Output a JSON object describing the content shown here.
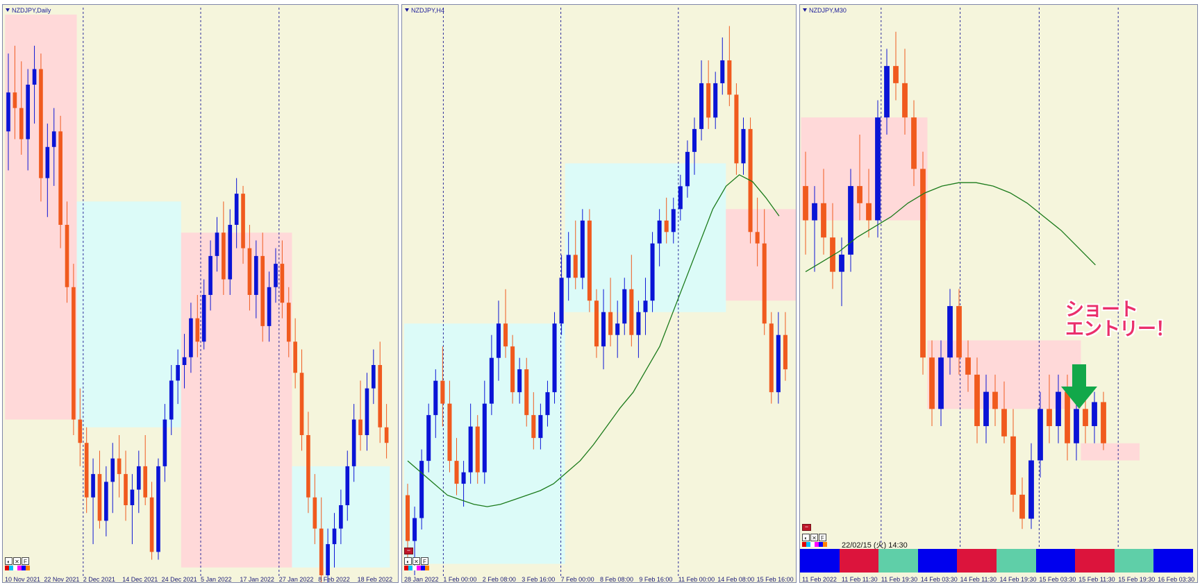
{
  "colors": {
    "background": "#f5f5dc",
    "bull_candle": "#0a14d6",
    "bear_candle": "#f05a1e",
    "moving_average": "#1a7a1a",
    "zone_pink": "#ffd9d9",
    "zone_cyan": "#dcfbf8",
    "annotation": "#ea2f6b",
    "arrow": "#12a84a"
  },
  "toolbar": {
    "minus_label": "−",
    "tool_labels": [
      "◐",
      "✕",
      "F"
    ]
  },
  "chart_data": [
    {
      "type": "candlestick",
      "symbol": "NZDJPY,Daily",
      "x_ticks": [
        "10 Nov 2021",
        "22 Nov 2021",
        "2 Dec 2021",
        "14 Dec 2021",
        "24 Dec 2021",
        "5 Jan 2022",
        "17 Jan 2022",
        "27 Jan 2022",
        "8 Feb 2022",
        "18 Feb 2022"
      ],
      "price_range": [
        76.2,
        79.8
      ],
      "candles": [
        [
          79.05,
          79.55,
          78.8,
          79.3
        ],
        [
          79.3,
          79.6,
          79.0,
          79.2
        ],
        [
          79.2,
          79.5,
          78.9,
          79.0
        ],
        [
          79.0,
          79.45,
          78.8,
          79.35
        ],
        [
          79.35,
          79.6,
          79.1,
          79.45
        ],
        [
          79.45,
          79.55,
          78.6,
          78.75
        ],
        [
          78.75,
          79.1,
          78.5,
          78.95
        ],
        [
          78.95,
          79.2,
          78.7,
          79.05
        ],
        [
          79.05,
          79.15,
          78.3,
          78.45
        ],
        [
          78.45,
          78.6,
          77.95,
          78.05
        ],
        [
          78.05,
          78.2,
          77.1,
          77.2
        ],
        [
          77.2,
          77.4,
          76.9,
          77.05
        ],
        [
          77.05,
          77.15,
          76.6,
          76.7
        ],
        [
          76.7,
          76.95,
          76.4,
          76.85
        ],
        [
          76.85,
          77.0,
          76.5,
          76.55
        ],
        [
          76.55,
          76.9,
          76.45,
          76.8
        ],
        [
          76.8,
          77.05,
          76.6,
          76.95
        ],
        [
          76.95,
          77.1,
          76.7,
          76.85
        ],
        [
          76.85,
          77.0,
          76.55,
          76.65
        ],
        [
          76.65,
          76.85,
          76.4,
          76.75
        ],
        [
          76.75,
          77.0,
          76.6,
          76.9
        ],
        [
          76.9,
          77.1,
          76.65,
          76.7
        ],
        [
          76.7,
          76.8,
          76.3,
          76.35
        ],
        [
          76.35,
          76.95,
          76.3,
          76.9
        ],
        [
          76.9,
          77.3,
          76.8,
          77.2
        ],
        [
          77.2,
          77.55,
          77.1,
          77.45
        ],
        [
          77.45,
          77.65,
          77.3,
          77.55
        ],
        [
          77.55,
          77.75,
          77.4,
          77.6
        ],
        [
          77.6,
          77.95,
          77.5,
          77.85
        ],
        [
          77.85,
          78.0,
          77.6,
          77.7
        ],
        [
          77.7,
          78.1,
          77.65,
          78.0
        ],
        [
          78.0,
          78.35,
          77.9,
          78.25
        ],
        [
          78.25,
          78.5,
          78.15,
          78.4
        ],
        [
          78.4,
          78.6,
          78.0,
          78.1
        ],
        [
          78.1,
          78.55,
          78.0,
          78.45
        ],
        [
          78.45,
          78.75,
          78.3,
          78.65
        ],
        [
          78.65,
          78.7,
          78.2,
          78.3
        ],
        [
          78.3,
          78.45,
          77.9,
          78.0
        ],
        [
          78.0,
          78.35,
          77.85,
          78.25
        ],
        [
          78.25,
          78.4,
          77.7,
          77.8
        ],
        [
          77.8,
          78.15,
          77.7,
          78.05
        ],
        [
          78.05,
          78.3,
          77.95,
          78.2
        ],
        [
          78.2,
          78.35,
          77.85,
          77.95
        ],
        [
          77.95,
          78.05,
          77.6,
          77.7
        ],
        [
          77.7,
          77.85,
          77.4,
          77.5
        ],
        [
          77.5,
          77.65,
          77.0,
          77.1
        ],
        [
          77.1,
          77.25,
          76.6,
          76.7
        ],
        [
          76.7,
          76.85,
          76.4,
          76.5
        ],
        [
          76.5,
          76.7,
          76.1,
          76.2
        ],
        [
          76.2,
          76.5,
          76.1,
          76.4
        ],
        [
          76.4,
          76.6,
          76.25,
          76.5
        ],
        [
          76.5,
          76.75,
          76.4,
          76.65
        ],
        [
          76.65,
          77.0,
          76.55,
          76.9
        ],
        [
          76.9,
          77.3,
          76.8,
          77.2
        ],
        [
          77.2,
          77.45,
          77.0,
          77.1
        ],
        [
          77.1,
          77.5,
          77.0,
          77.4
        ],
        [
          77.4,
          77.65,
          77.3,
          77.55
        ],
        [
          77.55,
          77.7,
          77.05,
          77.15
        ],
        [
          77.15,
          77.3,
          76.95,
          77.05
        ]
      ],
      "zones": [
        {
          "color": "pink",
          "from_index": 0,
          "to_index": 10,
          "price_top": 79.8,
          "price_bottom": 77.2
        },
        {
          "color": "cyan",
          "from_index": 11,
          "to_index": 26,
          "price_top": 78.6,
          "price_bottom": 77.15
        },
        {
          "color": "pink",
          "from_index": 27,
          "to_index": 43,
          "price_top": 78.4,
          "price_bottom": 76.25
        },
        {
          "color": "cyan",
          "from_index": 44,
          "to_index": 58,
          "price_top": 76.9,
          "price_bottom": 76.25
        }
      ],
      "vlines_at_ticks": [
        2,
        5,
        7
      ],
      "ma": []
    },
    {
      "type": "candlestick",
      "symbol": "NZDJPY,H4",
      "x_ticks": [
        "28 Jan 2022",
        "1 Feb 00:00",
        "2 Feb 08:00",
        "3 Feb 16:00",
        "7 Feb 00:00",
        "8 Feb 08:00",
        "9 Feb 16:00",
        "11 Feb 00:00",
        "14 Feb 08:00",
        "15 Feb 16:00"
      ],
      "price_range": [
        75.55,
        78.0
      ],
      "candles": [
        [
          75.9,
          75.95,
          75.6,
          75.7
        ],
        [
          75.7,
          75.85,
          75.55,
          75.8
        ],
        [
          75.8,
          76.1,
          75.75,
          76.05
        ],
        [
          76.05,
          76.3,
          76.0,
          76.25
        ],
        [
          76.25,
          76.45,
          76.15,
          76.4
        ],
        [
          76.4,
          76.55,
          76.2,
          76.3
        ],
        [
          76.3,
          76.4,
          76.0,
          76.05
        ],
        [
          76.05,
          76.15,
          75.9,
          75.95
        ],
        [
          75.95,
          76.05,
          75.85,
          76.0
        ],
        [
          76.0,
          76.3,
          75.95,
          76.2
        ],
        [
          76.2,
          76.25,
          75.95,
          76.0
        ],
        [
          76.0,
          76.4,
          75.95,
          76.3
        ],
        [
          76.3,
          76.6,
          76.25,
          76.5
        ],
        [
          76.5,
          76.75,
          76.4,
          76.65
        ],
        [
          76.65,
          76.8,
          76.5,
          76.55
        ],
        [
          76.55,
          76.6,
          76.3,
          76.35
        ],
        [
          76.35,
          76.5,
          76.3,
          76.45
        ],
        [
          76.45,
          76.5,
          76.2,
          76.25
        ],
        [
          76.25,
          76.35,
          76.1,
          76.15
        ],
        [
          76.15,
          76.3,
          76.1,
          76.25
        ],
        [
          76.25,
          76.4,
          76.2,
          76.35
        ],
        [
          76.35,
          76.7,
          76.3,
          76.65
        ],
        [
          76.65,
          76.95,
          76.6,
          76.85
        ],
        [
          76.85,
          77.05,
          76.75,
          76.95
        ],
        [
          76.95,
          77.1,
          76.8,
          76.85
        ],
        [
          76.85,
          77.15,
          76.8,
          77.1
        ],
        [
          77.1,
          77.15,
          76.7,
          76.75
        ],
        [
          76.75,
          76.8,
          76.5,
          76.55
        ],
        [
          76.55,
          76.8,
          76.45,
          76.7
        ],
        [
          76.7,
          76.85,
          76.55,
          76.6
        ],
        [
          76.6,
          76.75,
          76.5,
          76.65
        ],
        [
          76.65,
          76.85,
          76.6,
          76.8
        ],
        [
          76.8,
          76.95,
          76.55,
          76.6
        ],
        [
          76.6,
          76.75,
          76.5,
          76.7
        ],
        [
          76.7,
          76.85,
          76.6,
          76.75
        ],
        [
          76.75,
          77.05,
          76.7,
          77.0
        ],
        [
          77.0,
          77.15,
          76.9,
          77.1
        ],
        [
          77.1,
          77.2,
          77.0,
          77.05
        ],
        [
          77.05,
          77.2,
          77.0,
          77.15
        ],
        [
          77.15,
          77.3,
          77.1,
          77.25
        ],
        [
          77.25,
          77.45,
          77.2,
          77.4
        ],
        [
          77.4,
          77.55,
          77.3,
          77.5
        ],
        [
          77.5,
          77.8,
          77.45,
          77.7
        ],
        [
          77.7,
          77.8,
          77.5,
          77.55
        ],
        [
          77.55,
          77.75,
          77.5,
          77.7
        ],
        [
          77.7,
          77.9,
          77.65,
          77.8
        ],
        [
          77.8,
          77.95,
          77.6,
          77.65
        ],
        [
          77.65,
          77.7,
          77.3,
          77.35
        ],
        [
          77.35,
          77.55,
          77.3,
          77.5
        ],
        [
          77.5,
          77.55,
          77.0,
          77.05
        ],
        [
          77.05,
          77.2,
          76.9,
          77.0
        ],
        [
          77.0,
          77.15,
          76.6,
          76.65
        ],
        [
          76.65,
          76.7,
          76.3,
          76.35
        ],
        [
          76.35,
          76.7,
          76.3,
          76.6
        ],
        [
          76.6,
          76.7,
          76.4,
          76.45
        ]
      ],
      "zones": [
        {
          "color": "cyan",
          "from_index": 0,
          "to_index": 22,
          "price_top": 76.65,
          "price_bottom": 75.6
        },
        {
          "color": "cyan",
          "from_index": 23,
          "to_index": 45,
          "price_top": 77.35,
          "price_bottom": 76.7
        },
        {
          "color": "pink",
          "from_index": 46,
          "to_index": 58,
          "price_top": 77.15,
          "price_bottom": 76.75
        }
      ],
      "vlines_at_ticks": [
        1,
        4,
        7
      ],
      "ma": [
        76.05,
        76.0,
        75.95,
        75.9,
        75.88,
        75.86,
        75.85,
        75.86,
        75.88,
        75.9,
        75.92,
        75.95,
        76.0,
        76.05,
        76.12,
        76.2,
        76.28,
        76.35,
        76.45,
        76.55,
        76.7,
        76.85,
        77.0,
        77.15,
        77.25,
        77.3,
        77.27,
        77.2,
        77.12
      ]
    },
    {
      "type": "candlestick",
      "symbol": "NZDJPY,M30",
      "x_ticks": [
        "11 Feb 2022",
        "11 Feb 11:30",
        "11 Feb 19:30",
        "14 Feb 03:30",
        "14 Feb 11:30",
        "14 Feb 19:30",
        "15 Feb 03:30",
        "15 Feb 11:30",
        "15 Feb 19:30",
        "16 Feb 03:30"
      ],
      "price_range": [
        76.5,
        78.05
      ],
      "candles": [
        [
          77.55,
          77.65,
          77.35,
          77.45
        ],
        [
          77.45,
          77.55,
          77.3,
          77.5
        ],
        [
          77.5,
          77.6,
          77.35,
          77.4
        ],
        [
          77.4,
          77.5,
          77.25,
          77.3
        ],
        [
          77.3,
          77.4,
          77.2,
          77.35
        ],
        [
          77.35,
          77.6,
          77.3,
          77.55
        ],
        [
          77.55,
          77.7,
          77.45,
          77.5
        ],
        [
          77.5,
          77.6,
          77.4,
          77.45
        ],
        [
          77.45,
          77.8,
          77.4,
          77.75
        ],
        [
          77.75,
          77.95,
          77.7,
          77.9
        ],
        [
          77.9,
          78.0,
          77.8,
          77.85
        ],
        [
          77.85,
          77.95,
          77.7,
          77.75
        ],
        [
          77.75,
          77.8,
          77.55,
          77.6
        ],
        [
          77.6,
          77.65,
          77.0,
          77.05
        ],
        [
          77.05,
          77.1,
          76.85,
          76.9
        ],
        [
          76.9,
          77.1,
          76.85,
          77.05
        ],
        [
          77.05,
          77.25,
          77.0,
          77.2
        ],
        [
          77.2,
          77.25,
          77.0,
          77.05
        ],
        [
          77.05,
          77.1,
          76.95,
          77.0
        ],
        [
          77.0,
          77.05,
          76.8,
          76.85
        ],
        [
          76.85,
          77.0,
          76.8,
          76.95
        ],
        [
          76.95,
          77.0,
          76.85,
          76.9
        ],
        [
          76.9,
          76.98,
          76.8,
          76.82
        ],
        [
          76.82,
          76.9,
          76.6,
          76.65
        ],
        [
          76.65,
          76.7,
          76.55,
          76.58
        ],
        [
          76.58,
          76.8,
          76.55,
          76.75
        ],
        [
          76.75,
          76.95,
          76.7,
          76.9
        ],
        [
          76.9,
          77.0,
          76.8,
          76.85
        ],
        [
          76.85,
          77.0,
          76.8,
          76.95
        ],
        [
          76.95,
          77.0,
          76.75,
          76.8
        ],
        [
          76.8,
          76.95,
          76.75,
          76.9
        ],
        [
          76.9,
          76.95,
          76.8,
          76.85
        ],
        [
          76.85,
          76.95,
          76.8,
          76.92
        ],
        [
          76.92,
          76.95,
          76.78,
          76.8
        ]
      ],
      "zones": [
        {
          "color": "pink",
          "from_index": 0,
          "to_index": 13,
          "price_top": 77.75,
          "price_bottom": 77.45
        },
        {
          "color": "pink",
          "from_index": 14,
          "to_index": 30,
          "price_top": 77.1,
          "price_bottom": 76.9
        },
        {
          "color": "pink",
          "from_index": 31,
          "to_index": 33,
          "price_top": 76.8,
          "price_bottom": 76.75
        }
      ],
      "vlines_at_ticks": [
        2,
        4,
        6,
        8
      ],
      "ma": [
        77.3,
        77.33,
        77.36,
        77.4,
        77.43,
        77.46,
        77.5,
        77.53,
        77.55,
        77.56,
        77.56,
        77.55,
        77.53,
        77.5,
        77.46,
        77.42,
        77.37,
        77.32
      ],
      "segment_bar": [
        "#0000ee",
        "#dc143c",
        "#5fcfa8",
        "#0000ee",
        "#dc143c",
        "#5fcfa8",
        "#0000ee",
        "#dc143c",
        "#5fcfa8",
        "#0000ee"
      ],
      "timestamp": "22/02/15 (火) 14:30",
      "annotation_lines": [
        "ショート",
        "エントリー！"
      ]
    }
  ]
}
